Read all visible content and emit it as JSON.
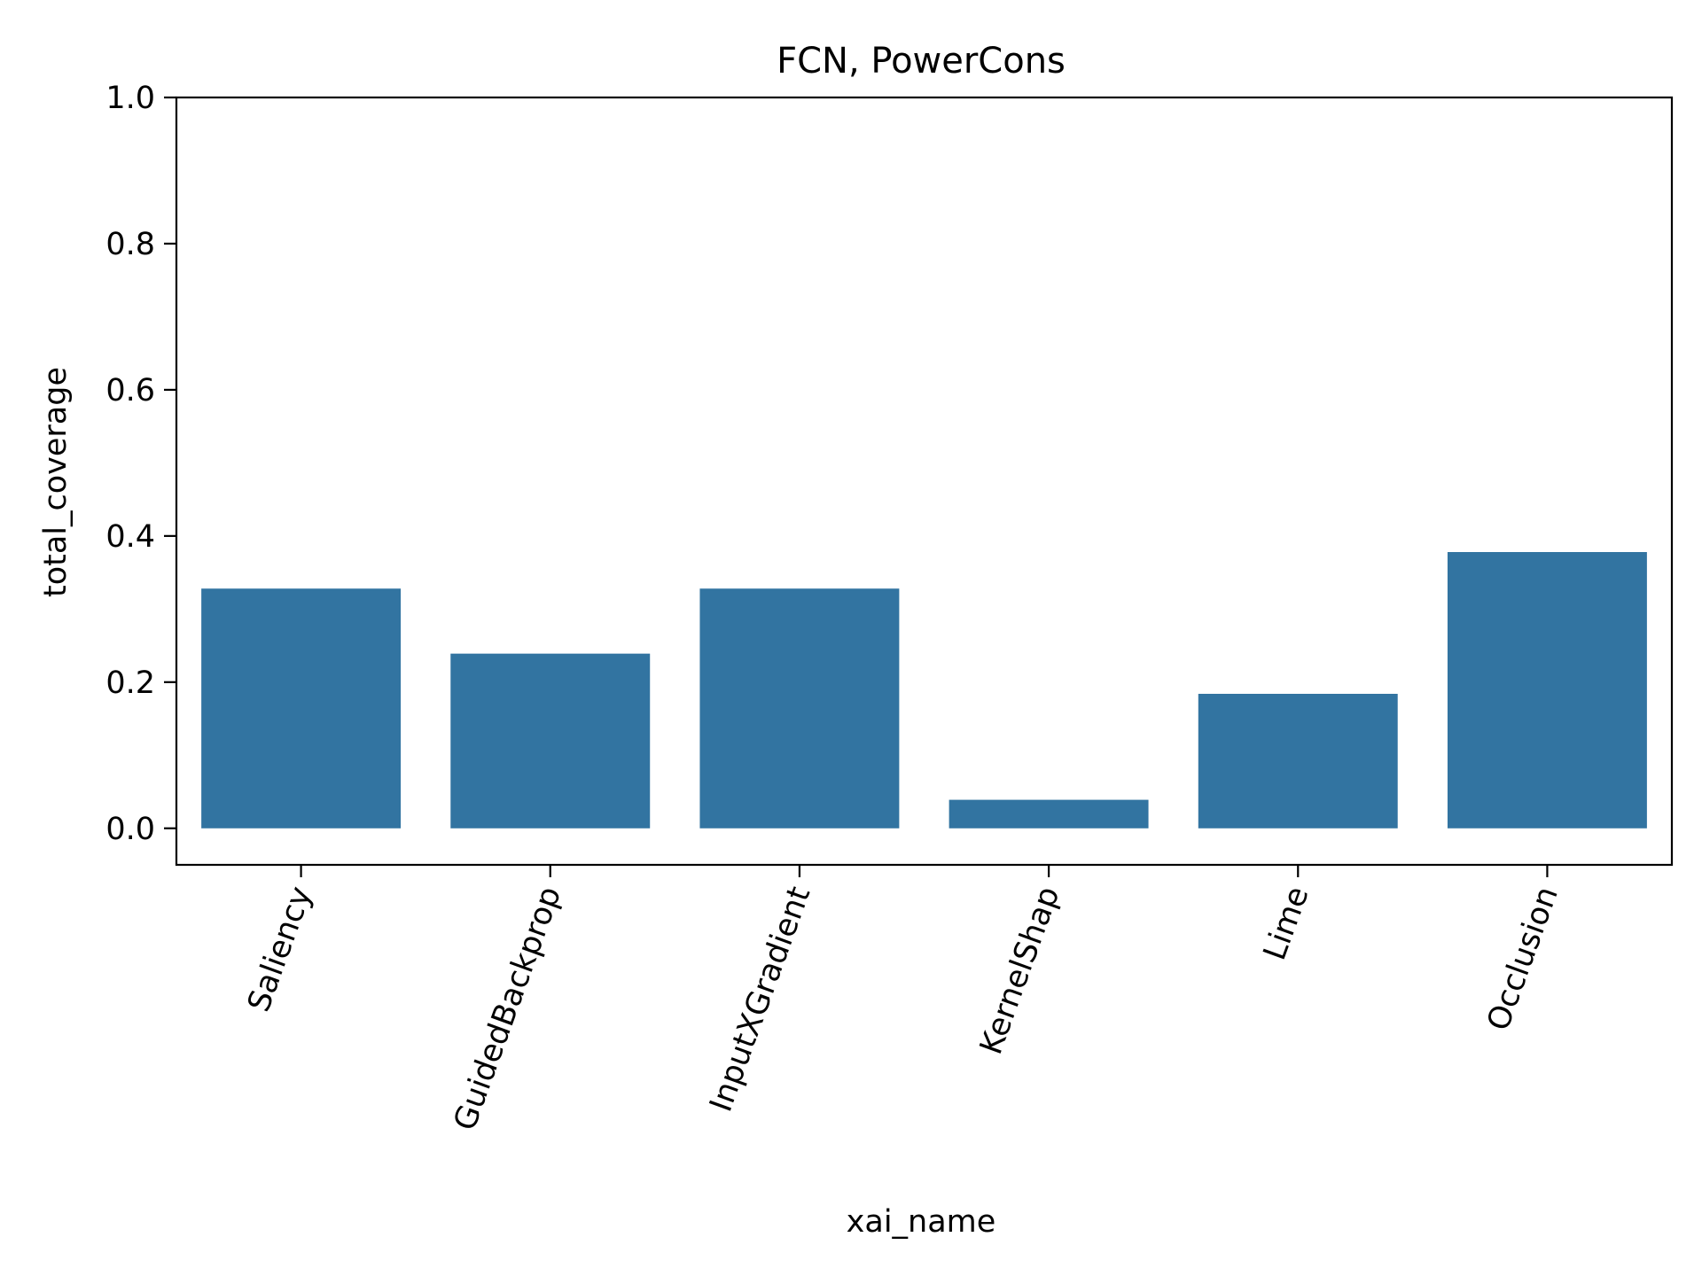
{
  "chart_data": {
    "type": "bar",
    "title": "FCN, PowerCons",
    "xlabel": "xai_name",
    "ylabel": "total_coverage",
    "categories": [
      "Saliency",
      "GuidedBackprop",
      "InputXGradient",
      "KernelShap",
      "Lime",
      "Occlusion"
    ],
    "values": [
      0.328,
      0.239,
      0.328,
      0.039,
      0.184,
      0.378
    ],
    "ylim": [
      -0.05,
      1.0
    ],
    "yticks": [
      0.0,
      0.2,
      0.4,
      0.6,
      0.8,
      1.0
    ],
    "ytick_labels": [
      "0.0",
      "0.2",
      "0.4",
      "0.6",
      "0.8",
      "1.0"
    ],
    "grid": false,
    "bar_color": "#3274a1"
  }
}
